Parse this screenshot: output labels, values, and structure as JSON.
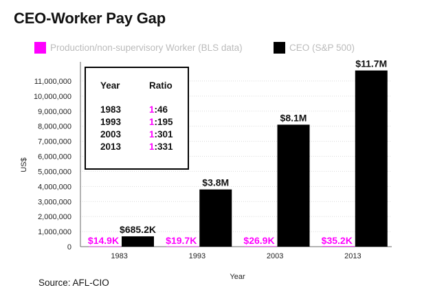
{
  "page": {
    "title": "CEO-Worker Pay Gap",
    "source": "Source: AFL-CIO"
  },
  "legend": {
    "worker": "Production/non-supervisory Worker (BLS data)",
    "ceo": "CEO (S&P 500)"
  },
  "ratio_table": {
    "headers": {
      "year": "Year",
      "ratio": "Ratio"
    },
    "rows": [
      {
        "year": "1983",
        "numerator": "1",
        "rest": ":46"
      },
      {
        "year": "1993",
        "numerator": "1",
        "rest": ":195"
      },
      {
        "year": "2003",
        "numerator": "1",
        "rest": ":301"
      },
      {
        "year": "2013",
        "numerator": "1",
        "rest": ":331"
      }
    ]
  },
  "colors": {
    "worker": "#ff00ff",
    "ceo": "#000000",
    "legend_text": "#bbbbbb"
  },
  "chart_data": {
    "type": "bar",
    "title": "CEO-Worker Pay Gap",
    "xlabel": "Year",
    "ylabel": "US$",
    "ylim": [
      0,
      12000000
    ],
    "yticks": [
      0,
      1000000,
      2000000,
      3000000,
      4000000,
      5000000,
      6000000,
      7000000,
      8000000,
      9000000,
      10000000,
      11000000
    ],
    "ytick_labels": [
      "0",
      "1,000,000",
      "2,000,000",
      "3,000,000",
      "4,000,000",
      "5,000,000",
      "6,000,000",
      "7,000,000",
      "8,000,000",
      "9,000,000",
      "10,000,000",
      "11,000,000"
    ],
    "categories": [
      "1983",
      "1993",
      "2003",
      "2013"
    ],
    "series": [
      {
        "name": "Production/non-supervisory Worker (BLS data)",
        "values": [
          14900,
          19700,
          26900,
          35200
        ],
        "labels": [
          "$14.9K",
          "$19.7K",
          "$26.9K",
          "$35.2K"
        ]
      },
      {
        "name": "CEO (S&P 500)",
        "values": [
          685200,
          3800000,
          8100000,
          11700000
        ],
        "labels": [
          "$685.2K",
          "$3.8M",
          "$8.1M",
          "$11.7M"
        ]
      }
    ],
    "legend_position": "top",
    "grid": true
  }
}
